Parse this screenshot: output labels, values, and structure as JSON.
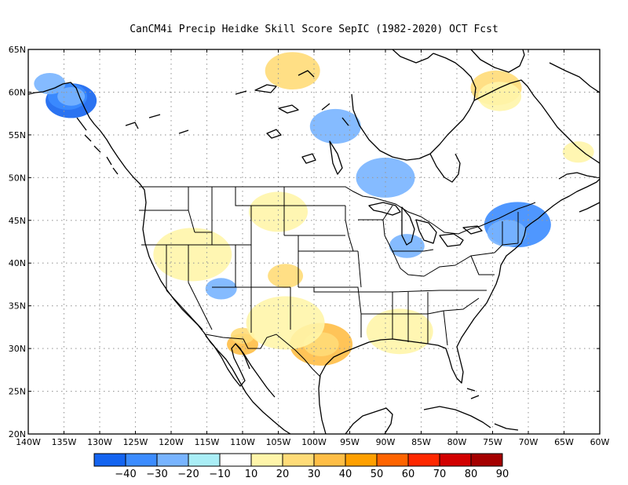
{
  "title": "CanCM4i Precip Heidke Skill Score SepIC (1982-2020) OCT Fcst",
  "map": {
    "lon_range": [
      -140,
      -60
    ],
    "lat_range": [
      20,
      65
    ],
    "lon_ticks": [
      "140W",
      "135W",
      "130W",
      "125W",
      "120W",
      "115W",
      "110W",
      "105W",
      "100W",
      "95W",
      "90W",
      "85W",
      "80W",
      "75W",
      "70W",
      "65W",
      "60W"
    ],
    "lat_ticks": [
      "20N",
      "25N",
      "30N",
      "35N",
      "40N",
      "45N",
      "50N",
      "55N",
      "60N",
      "65N"
    ],
    "gridlines": "dotted"
  },
  "colorbar": {
    "labels": [
      "-40",
      "-30",
      "-20",
      "-10",
      "10",
      "20",
      "30",
      "40",
      "50",
      "60",
      "70",
      "80",
      "90"
    ],
    "colors": [
      "#1464f0",
      "#3c8cff",
      "#78b4ff",
      "#aaeef6",
      "#ffffff",
      "#fff5aa",
      "#ffdc78",
      "#ffbe46",
      "#ffa000",
      "#ff6400",
      "#ff2800",
      "#d20000",
      "#a50000"
    ]
  },
  "chart_data": {
    "type": "heatmap",
    "title": "CanCM4i Precip Heidke Skill Score SepIC (1982-2020) OCT Fcst",
    "x_range": [
      -140,
      -60
    ],
    "y_range": [
      20,
      65
    ],
    "levels": [
      -40,
      -30,
      -20,
      -10,
      10,
      20,
      30,
      40,
      50,
      60,
      70,
      80,
      90
    ],
    "regions": [
      {
        "name": "Southeast Alaska coast",
        "lon": -134,
        "lat": 59,
        "value": -35
      },
      {
        "name": "Southeast Alaska coast (outer)",
        "lon": -134.5,
        "lat": 59.5,
        "value": -25
      },
      {
        "name": "Southeast Alaska coast (edge)",
        "lon": -134,
        "lat": 59.5,
        "value": -15
      },
      {
        "name": "Northern New England",
        "lon": -71.5,
        "lat": 44.5,
        "value": -25
      },
      {
        "name": "Northeast US",
        "lon": -73,
        "lat": 43.5,
        "value": -15
      },
      {
        "name": "Central Texas",
        "lon": -99,
        "lat": 30.5,
        "value": 35
      },
      {
        "name": "Central Texas (core)",
        "lon": -99,
        "lat": 30.5,
        "value": 25
      },
      {
        "name": "Southern Arizona",
        "lon": -110,
        "lat": 30.5,
        "value": 35
      },
      {
        "name": "Arizona / Sonora",
        "lon": -110,
        "lat": 31.5,
        "value": 25
      },
      {
        "name": "Northern Quebec",
        "lon": -74.5,
        "lat": 60.5,
        "value": 25
      },
      {
        "name": "Northern Quebec (outer)",
        "lon": -74,
        "lat": 59.5,
        "value": 15
      },
      {
        "name": "Northern Canada",
        "lon": -103,
        "lat": 62.5,
        "value": 20
      },
      {
        "name": "Oklahoma / Kansas",
        "lon": -104,
        "lat": 38.5,
        "value": 25
      },
      {
        "name": "Southern Plains",
        "lon": -104,
        "lat": 33,
        "value": 15
      },
      {
        "name": "Intermountain West",
        "lon": -117,
        "lat": 41,
        "value": 15
      },
      {
        "name": "Southeast US",
        "lon": -88,
        "lat": 32,
        "value": 15
      },
      {
        "name": "Labrador",
        "lon": -63,
        "lat": 53,
        "value": 15
      },
      {
        "name": "Northern Plains",
        "lon": -105,
        "lat": 46,
        "value": 15
      },
      {
        "name": "Hudson Bay area",
        "lon": -97,
        "lat": 56,
        "value": -15
      },
      {
        "name": "Gulf of Alaska",
        "lon": -137,
        "lat": 61,
        "value": -15
      },
      {
        "name": "Ontario",
        "lon": -90,
        "lat": 50,
        "value": -15
      },
      {
        "name": "Upper Midwest",
        "lon": -87,
        "lat": 42,
        "value": -15
      },
      {
        "name": "Nevada",
        "lon": -113,
        "lat": 37,
        "value": -15
      }
    ]
  }
}
